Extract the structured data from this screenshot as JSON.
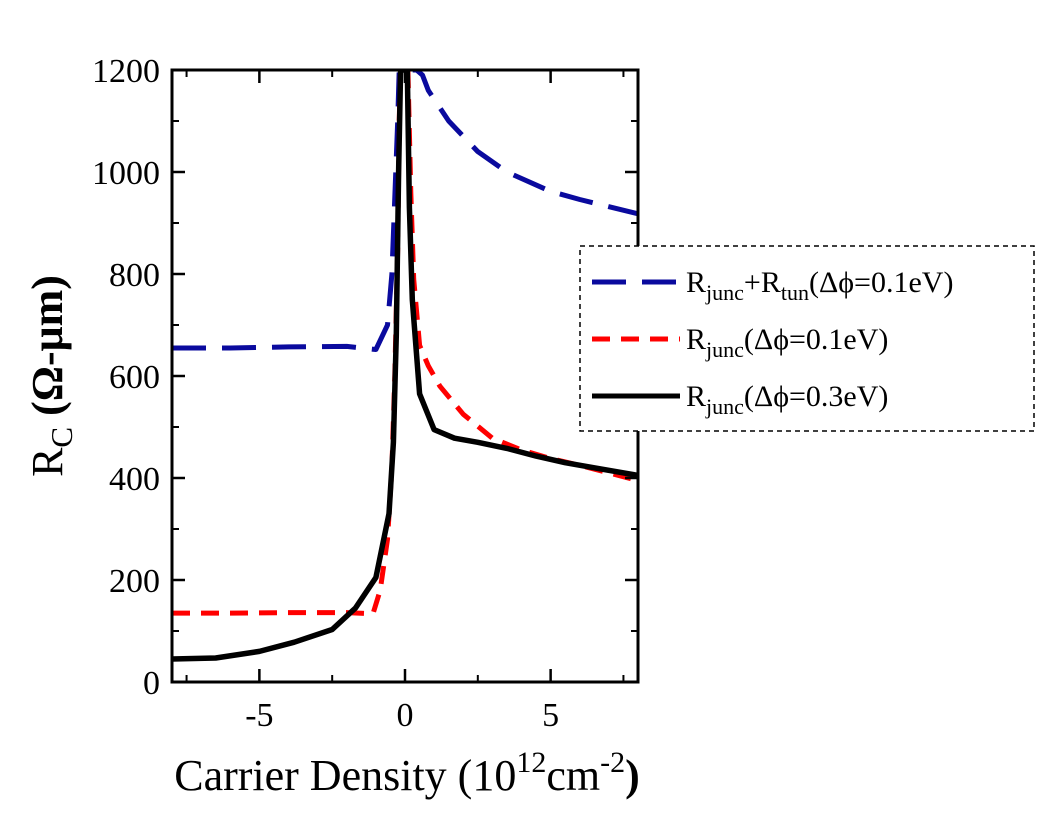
{
  "chart_data": {
    "type": "line",
    "xlabel": {
      "text": "Carrier Density (10",
      "sup1": "12",
      "mid": "cm",
      "sup2": "-2",
      "end": ")"
    },
    "ylabel": {
      "main": "R",
      "sub": "C",
      "paren": " (Ω-μm)"
    },
    "xlim": [
      -8,
      8
    ],
    "ylim": [
      0,
      1200
    ],
    "xticks": [
      -5,
      0,
      5
    ],
    "yticks": [
      0,
      200,
      400,
      600,
      800,
      1000,
      1200
    ],
    "grid": false,
    "legend_position": "right",
    "series": [
      {
        "legend": [
          {
            "t": "R"
          },
          {
            "t": "junc",
            "sub": true
          },
          {
            "t": "+R"
          },
          {
            "t": "tun",
            "sub": true
          },
          {
            "t": "(Δϕ=0.1eV)"
          }
        ],
        "color": "#0a0a9e",
        "dash": "dashed-long",
        "x": [
          -8,
          -6,
          -4,
          -2,
          -1.5,
          -1,
          -0.6,
          -0.45,
          -0.35,
          -0.25,
          -0.2,
          0.4,
          0.6,
          0.8,
          1.5,
          2.5,
          3.5,
          5,
          6,
          7,
          8
        ],
        "y": [
          655,
          655,
          657,
          658,
          655,
          652,
          700,
          800,
          950,
          1100,
          1200,
          1200,
          1190,
          1160,
          1100,
          1040,
          1000,
          962,
          946,
          932,
          918
        ]
      },
      {
        "legend": [
          {
            "t": "R"
          },
          {
            "t": "junc",
            "sub": true
          },
          {
            "t": "(Δϕ=0.1eV)"
          }
        ],
        "color": "#ff0000",
        "dash": "dashed-short",
        "x": [
          -8,
          -6,
          -4,
          -2,
          -1.1,
          -0.85,
          -0.6,
          -0.45,
          -0.35,
          -0.25,
          -0.2,
          -0.15,
          0.1,
          0.2,
          0.3,
          0.5,
          0.8,
          1.2,
          2,
          3,
          4,
          5,
          6,
          7,
          8
        ],
        "y": [
          135,
          135,
          136,
          136,
          134,
          180,
          280,
          420,
          600,
          850,
          1100,
          1200,
          1200,
          960,
          790,
          660,
          620,
          580,
          525,
          478,
          455,
          438,
          425,
          410,
          395
        ]
      },
      {
        "legend": [
          {
            "t": "R"
          },
          {
            "t": "junc",
            "sub": true
          },
          {
            "t": "(Δϕ=0.3eV)"
          }
        ],
        "color": "#000000",
        "dash": "solid",
        "x": [
          -8,
          -6.5,
          -5,
          -3.8,
          -2.5,
          -1.7,
          -1,
          -0.55,
          -0.4,
          -0.3,
          -0.22,
          -0.15,
          0.08,
          0.15,
          0.25,
          0.5,
          1,
          1.7,
          2.5,
          3.5,
          4.5,
          5.5,
          6.5,
          8
        ],
        "y": [
          45,
          47,
          60,
          78,
          103,
          145,
          205,
          330,
          470,
          680,
          1000,
          1200,
          1200,
          930,
          750,
          565,
          495,
          478,
          470,
          458,
          443,
          430,
          420,
          405
        ]
      }
    ]
  }
}
